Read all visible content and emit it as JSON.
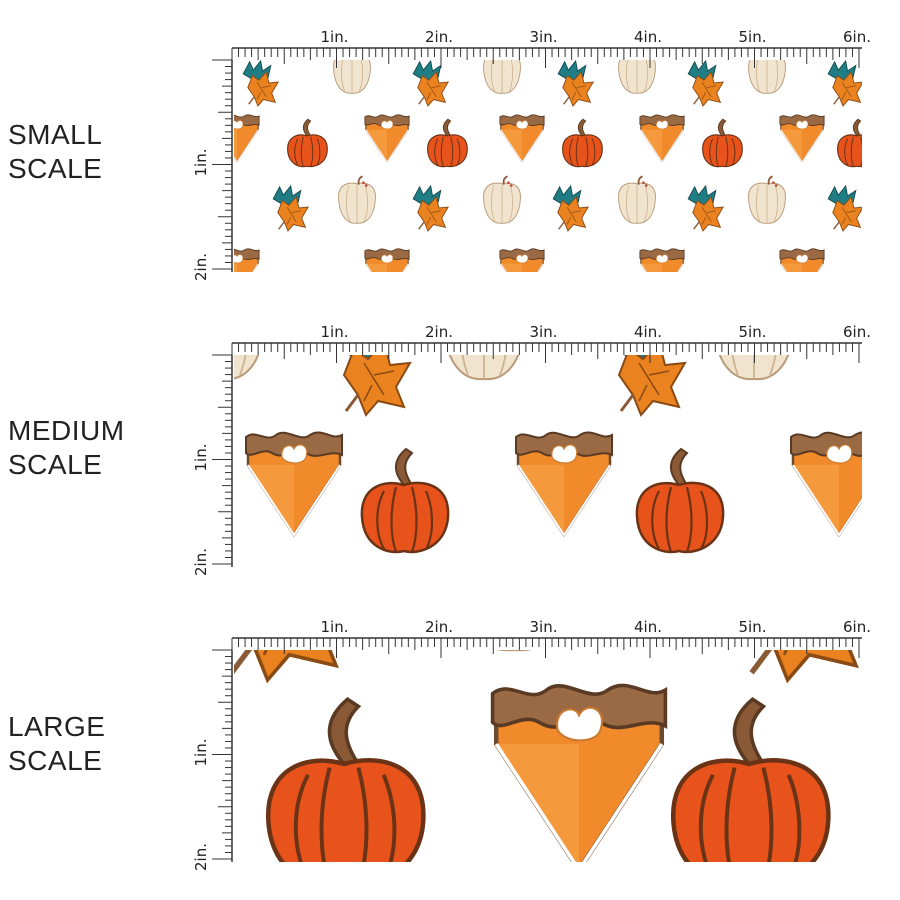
{
  "rows": [
    {
      "label_line1": "SMALL",
      "label_line2": "SCALE",
      "scale": "small"
    },
    {
      "label_line1": "MEDIUM",
      "label_line2": "SCALE",
      "scale": "medium"
    },
    {
      "label_line1": "LARGE",
      "label_line2": "SCALE",
      "scale": "large"
    }
  ],
  "ruler": {
    "horizontal_labels": [
      "1in.",
      "2in.",
      "3in.",
      "4in.",
      "5in.",
      "6in."
    ],
    "vertical_labels": [
      "1in.",
      "2in."
    ]
  },
  "pattern": {
    "motifs": [
      "pumpkin-pie-slice",
      "orange-pumpkin",
      "cream-pumpkin",
      "autumn-leaves"
    ],
    "colors": {
      "pumpkin": "#e8531c",
      "pumpkin_dark": "#b83a10",
      "pie_filling": "#f08a2a",
      "pie_crust": "#9a6a45",
      "cream": "#f1e4cf",
      "leaf_orange": "#e9821f",
      "leaf_teal": "#1f7e85",
      "stem": "#8a5a36"
    }
  }
}
